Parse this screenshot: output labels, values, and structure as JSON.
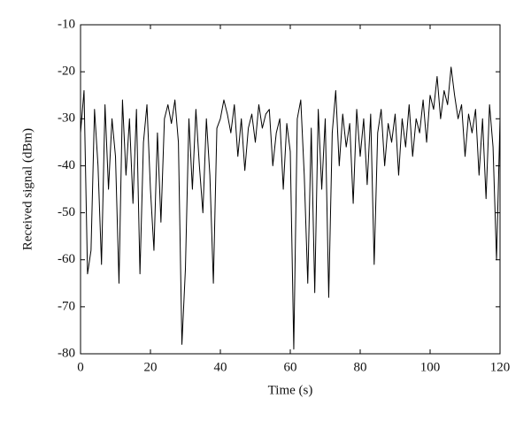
{
  "chart_data": {
    "type": "line",
    "xlabel": "Time (s)",
    "ylabel": "Received signal (dBm)",
    "xlim": [
      0,
      120
    ],
    "xticks": [
      0,
      20,
      40,
      60,
      80,
      100,
      120
    ],
    "ylim": [
      -80,
      -10
    ],
    "yticks": [
      -80,
      -70,
      -60,
      -50,
      -40,
      -30,
      -20,
      -10
    ],
    "color": "#000000",
    "x": [
      0,
      1,
      2,
      3,
      4,
      5,
      6,
      7,
      8,
      9,
      10,
      11,
      12,
      13,
      14,
      15,
      16,
      17,
      18,
      19,
      20,
      21,
      22,
      23,
      24,
      25,
      26,
      27,
      28,
      29,
      30,
      31,
      32,
      33,
      34,
      35,
      36,
      37,
      38,
      39,
      40,
      41,
      42,
      43,
      44,
      45,
      46,
      47,
      48,
      49,
      50,
      51,
      52,
      53,
      54,
      55,
      56,
      57,
      58,
      59,
      60,
      61,
      62,
      63,
      64,
      65,
      66,
      67,
      68,
      69,
      70,
      71,
      72,
      73,
      74,
      75,
      76,
      77,
      78,
      79,
      80,
      81,
      82,
      83,
      84,
      85,
      86,
      87,
      88,
      89,
      90,
      91,
      92,
      93,
      94,
      95,
      96,
      97,
      98,
      99,
      100,
      101,
      102,
      103,
      104,
      105,
      106,
      107,
      108,
      109,
      110,
      111,
      112,
      113,
      114,
      115,
      116,
      117,
      118,
      119,
      120
    ],
    "values": [
      -33,
      -24,
      -63,
      -58,
      -28,
      -40,
      -61,
      -27,
      -45,
      -30,
      -38,
      -65,
      -26,
      -42,
      -30,
      -48,
      -28,
      -63,
      -35,
      -27,
      -45,
      -58,
      -33,
      -52,
      -30,
      -27,
      -31,
      -26,
      -35,
      -78,
      -62,
      -30,
      -45,
      -28,
      -40,
      -50,
      -30,
      -42,
      -65,
      -32,
      -30,
      -26,
      -29,
      -33,
      -27,
      -38,
      -30,
      -41,
      -32,
      -29,
      -35,
      -27,
      -32,
      -29,
      -28,
      -40,
      -33,
      -30,
      -45,
      -31,
      -37,
      -79,
      -30,
      -26,
      -42,
      -65,
      -32,
      -67,
      -28,
      -45,
      -30,
      -68,
      -33,
      -24,
      -40,
      -29,
      -36,
      -31,
      -48,
      -28,
      -38,
      -30,
      -44,
      -29,
      -61,
      -33,
      -28,
      -40,
      -31,
      -35,
      -29,
      -42,
      -30,
      -36,
      -27,
      -38,
      -30,
      -33,
      -26,
      -35,
      -25,
      -28,
      -21,
      -30,
      -24,
      -27,
      -19,
      -25,
      -30,
      -27,
      -38,
      -29,
      -33,
      -28,
      -42,
      -30,
      -47,
      -27,
      -36,
      -60,
      -30
    ]
  }
}
